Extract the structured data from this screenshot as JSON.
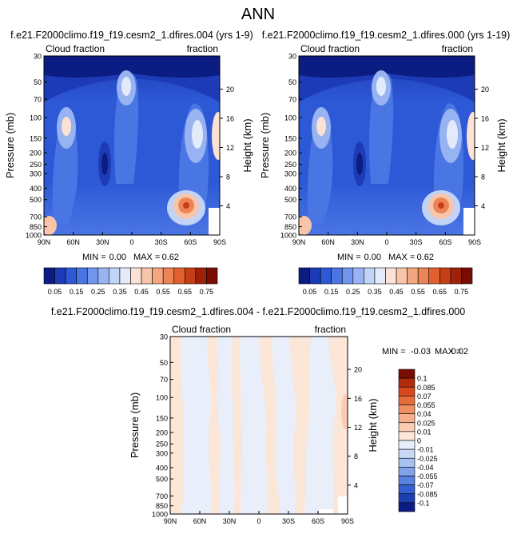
{
  "page_title": "ANN",
  "chart_data": [
    {
      "type": "heatmap",
      "title": "f.e21.F2000climo.f19_f19.cesm2_1.dfires.004 (yrs 1-9)",
      "left_label": "Cloud fraction",
      "right_label": "fraction",
      "xlabel": "",
      "ylabel": "Pressure (mb)",
      "ylabel_right": "Height (km)",
      "x_ticks": [
        "90N",
        "60N",
        "30N",
        "0",
        "30S",
        "60S",
        "90S"
      ],
      "y_ticks": [
        "30",
        "50",
        "70",
        "100",
        "150",
        "200",
        "250",
        "300",
        "400",
        "500",
        "700",
        "850",
        "1000"
      ],
      "height_ticks": [
        "20",
        "16",
        "12",
        "8",
        "4"
      ],
      "ylim": [
        1000,
        30
      ],
      "xlim": [
        90,
        -90
      ],
      "stats": {
        "min_label": "MIN =",
        "min": "0.00",
        "max_label": "MAX =",
        "max": "0.62"
      },
      "colorbar": {
        "orientation": "horizontal",
        "labels": [
          "0.05",
          "0.15",
          "0.25",
          "0.35",
          "0.45",
          "0.55",
          "0.65",
          "0.75"
        ],
        "colors": [
          "#0b1c83",
          "#1d3bb7",
          "#2d58d6",
          "#4a76e4",
          "#7194ec",
          "#98b3f1",
          "#c1d3f6",
          "#e3ebfa",
          "#fbe2d4",
          "#f8c5aa",
          "#f3a67f",
          "#ec8456",
          "#e0612f",
          "#c63e17",
          "#9f2108",
          "#7a0d03"
        ]
      }
    },
    {
      "type": "heatmap",
      "title": "f.e21.F2000climo.f19_f19.cesm2_1.dfires.000 (yrs 1-19)",
      "left_label": "Cloud fraction",
      "right_label": "fraction",
      "xlabel": "",
      "ylabel": "Pressure (mb)",
      "ylabel_right": "Height (km)",
      "x_ticks": [
        "90N",
        "60N",
        "30N",
        "0",
        "30S",
        "60S",
        "90S"
      ],
      "y_ticks": [
        "30",
        "50",
        "70",
        "100",
        "150",
        "200",
        "250",
        "300",
        "400",
        "500",
        "700",
        "850",
        "1000"
      ],
      "height_ticks": [
        "20",
        "16",
        "12",
        "8",
        "4"
      ],
      "ylim": [
        1000,
        30
      ],
      "xlim": [
        90,
        -90
      ],
      "stats": {
        "min_label": "MIN =",
        "min": "0.00",
        "max_label": "MAX =",
        "max": "0.62"
      },
      "colorbar": {
        "orientation": "horizontal",
        "labels": [
          "0.05",
          "0.15",
          "0.25",
          "0.35",
          "0.45",
          "0.55",
          "0.65",
          "0.75"
        ],
        "colors": [
          "#0b1c83",
          "#1d3bb7",
          "#2d58d6",
          "#4a76e4",
          "#7194ec",
          "#98b3f1",
          "#c1d3f6",
          "#e3ebfa",
          "#fbe2d4",
          "#f8c5aa",
          "#f3a67f",
          "#ec8456",
          "#e0612f",
          "#c63e17",
          "#9f2108",
          "#7a0d03"
        ]
      }
    },
    {
      "type": "heatmap",
      "title": "f.e21.F2000climo.f19_f19.cesm2_1.dfires.004 - f.e21.F2000climo.f19_f19.cesm2_1.dfires.000",
      "left_label": "Cloud fraction",
      "right_label": "fraction",
      "xlabel": "",
      "ylabel": "Pressure (mb)",
      "ylabel_right": "Height (km)",
      "x_ticks": [
        "90N",
        "60N",
        "30N",
        "0",
        "30S",
        "60S",
        "90S"
      ],
      "y_ticks": [
        "30",
        "50",
        "70",
        "100",
        "150",
        "200",
        "250",
        "300",
        "400",
        "500",
        "700",
        "850",
        "1000"
      ],
      "height_ticks": [
        "20",
        "16",
        "12",
        "8",
        "4"
      ],
      "ylim": [
        1000,
        30
      ],
      "xlim": [
        90,
        -90
      ],
      "stats": {
        "min_label": "MIN =",
        "min": "-0.03",
        "max_label": "MAX =",
        "max": "0.02"
      },
      "colorbar": {
        "orientation": "vertical",
        "labels": [
          "0.1",
          "0.085",
          "0.07",
          "0.055",
          "0.04",
          "0.025",
          "0.01",
          "0",
          "-0.01",
          "-0.025",
          "-0.04",
          "-0.055",
          "-0.07",
          "-0.085",
          "-0.1"
        ],
        "colors": [
          "#7a0d03",
          "#b02a0c",
          "#d44a1d",
          "#e66c3b",
          "#f08f64",
          "#f6b08c",
          "#f9cdb3",
          "#fce6d8",
          "#e8effa",
          "#c9d9f5",
          "#a6c0f0",
          "#7fa2e9",
          "#5981e0",
          "#3660cf",
          "#1c40b0",
          "#0b1c83"
        ]
      }
    }
  ]
}
